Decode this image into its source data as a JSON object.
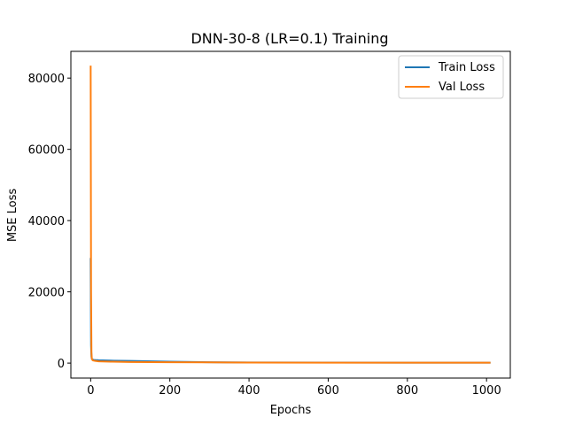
{
  "chart_data": {
    "type": "line",
    "title": "DNN-30-8 (LR=0.1) Training",
    "xlabel": "Epochs",
    "ylabel": "MSE Loss",
    "xlim": [
      -50,
      1060
    ],
    "ylim": [
      -4200,
      87500
    ],
    "xticks": [
      0,
      200,
      400,
      600,
      800,
      1000
    ],
    "yticks": [
      0,
      20000,
      40000,
      60000,
      80000
    ],
    "legend_position": "top-right",
    "grid": false,
    "series": [
      {
        "name": "Train Loss",
        "color": "#1f77b4",
        "x": [
          0,
          1,
          2,
          3,
          5,
          8,
          12,
          20,
          50,
          100,
          200,
          300,
          400,
          600,
          800,
          1000,
          1010
        ],
        "y": [
          29500,
          5000,
          1800,
          1200,
          1000,
          900,
          850,
          800,
          700,
          600,
          400,
          250,
          180,
          150,
          130,
          120,
          120
        ]
      },
      {
        "name": "Val Loss",
        "color": "#ff7f0e",
        "x": [
          0,
          1,
          2,
          3,
          5,
          8,
          12,
          20,
          50,
          100,
          200,
          300,
          400,
          600,
          800,
          1000,
          1010
        ],
        "y": [
          83500,
          20000,
          3000,
          1200,
          800,
          700,
          600,
          500,
          400,
          300,
          250,
          200,
          150,
          130,
          120,
          110,
          110
        ]
      }
    ]
  }
}
